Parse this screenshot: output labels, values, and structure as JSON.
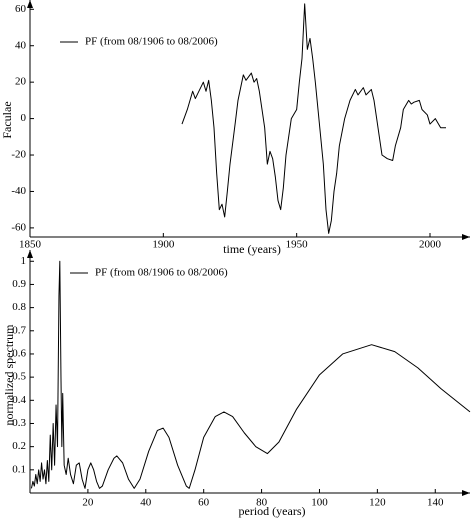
{
  "chart_data": [
    {
      "type": "line",
      "xlabel": "time (years)",
      "ylabel": "Faculae",
      "x": [
        1907,
        1909,
        1911,
        1912,
        1913,
        1915,
        1916,
        1917,
        1918,
        1919,
        1920,
        1921,
        1922,
        1923,
        1924,
        1925,
        1927,
        1928,
        1930,
        1931,
        1933,
        1934,
        1935,
        1936,
        1937,
        1938,
        1939,
        1940,
        1941,
        1942,
        1943,
        1944,
        1945,
        1946,
        1948,
        1950,
        1951,
        1952,
        1953,
        1954,
        1955,
        1956,
        1957,
        1958,
        1959,
        1960,
        1961,
        1962,
        1963,
        1964,
        1965,
        1966,
        1968,
        1970,
        1972,
        1973,
        1975,
        1976,
        1978,
        1979,
        1980,
        1981,
        1982,
        1984,
        1986,
        1987,
        1989,
        1990,
        1992,
        1993,
        1994,
        1996,
        1997,
        1999,
        2000,
        2002,
        2004,
        2006
      ],
      "series": [
        {
          "name": "PF (from 08/1906 to 08/2006)",
          "color": "#000000",
          "values": [
            -3,
            5,
            15,
            11,
            14,
            20,
            15,
            21,
            10,
            -5,
            -30,
            -50,
            -47,
            -54,
            -40,
            -25,
            -2,
            10,
            24,
            21,
            25,
            20,
            22,
            15,
            5,
            -5,
            -25,
            -18,
            -22,
            -32,
            -45,
            -50,
            -38,
            -20,
            0,
            5,
            20,
            33,
            63,
            38,
            44,
            33,
            20,
            5,
            -10,
            -25,
            -50,
            -63,
            -56,
            -40,
            -30,
            -15,
            0,
            10,
            16,
            13,
            17,
            13,
            16,
            10,
            0,
            -10,
            -20,
            -22,
            -23,
            -15,
            -5,
            5,
            10,
            8,
            9,
            10,
            5,
            2,
            -3,
            0,
            -5,
            -5
          ]
        }
      ],
      "xlim": [
        1850,
        2015
      ],
      "xticks": [
        1850,
        1900,
        1950,
        2000
      ],
      "ylim": [
        -65,
        64
      ],
      "yticks": [
        -60,
        -40,
        -20,
        0,
        20,
        40,
        60
      ],
      "legend": "upper left"
    },
    {
      "type": "line",
      "xlabel": "period (years)",
      "ylabel": "normalized spectrum",
      "x": [
        0.5,
        1,
        1.5,
        2,
        2.5,
        3,
        3.5,
        4,
        4.5,
        5,
        5.5,
        6,
        6.5,
        7,
        7.5,
        8,
        8.5,
        9,
        9.5,
        10,
        10.3,
        10.7,
        11,
        11.3,
        11.8,
        12.5,
        13.2,
        14,
        15,
        16,
        17,
        18,
        19,
        20,
        21,
        22,
        23,
        24,
        25,
        27,
        29,
        30,
        32,
        34,
        36,
        38,
        41,
        44,
        46,
        48,
        51,
        54,
        55,
        57,
        60,
        64,
        67,
        70,
        74,
        78,
        82,
        86,
        92,
        100,
        108,
        118,
        126,
        134,
        142,
        152
      ],
      "series": [
        {
          "name": "PF (from 08/1906 to 08/2006)",
          "color": "#000000",
          "values": [
            0.02,
            0.05,
            0.03,
            0.08,
            0.04,
            0.1,
            0.05,
            0.13,
            0.06,
            0.1,
            0.04,
            0.14,
            0.05,
            0.25,
            0.1,
            0.3,
            0.12,
            0.38,
            0.2,
            0.85,
            1.0,
            0.5,
            0.2,
            0.43,
            0.12,
            0.08,
            0.15,
            0.08,
            0.04,
            0.12,
            0.13,
            0.06,
            0.02,
            0.1,
            0.13,
            0.1,
            0.05,
            0.02,
            0.03,
            0.1,
            0.15,
            0.16,
            0.13,
            0.06,
            0.02,
            0.06,
            0.18,
            0.27,
            0.28,
            0.24,
            0.12,
            0.03,
            0.02,
            0.1,
            0.24,
            0.33,
            0.35,
            0.33,
            0.26,
            0.2,
            0.17,
            0.22,
            0.36,
            0.51,
            0.6,
            0.64,
            0.61,
            0.54,
            0.45,
            0.35
          ]
        }
      ],
      "xlim": [
        0,
        152
      ],
      "xticks": [
        20,
        40,
        60,
        80,
        100,
        120,
        140
      ],
      "ylim": [
        0,
        1.04
      ],
      "yticks": [
        0.1,
        0.2,
        0.3,
        0.4,
        0.5,
        0.6,
        0.7,
        0.8,
        0.9,
        1
      ],
      "legend": "upper left"
    }
  ]
}
